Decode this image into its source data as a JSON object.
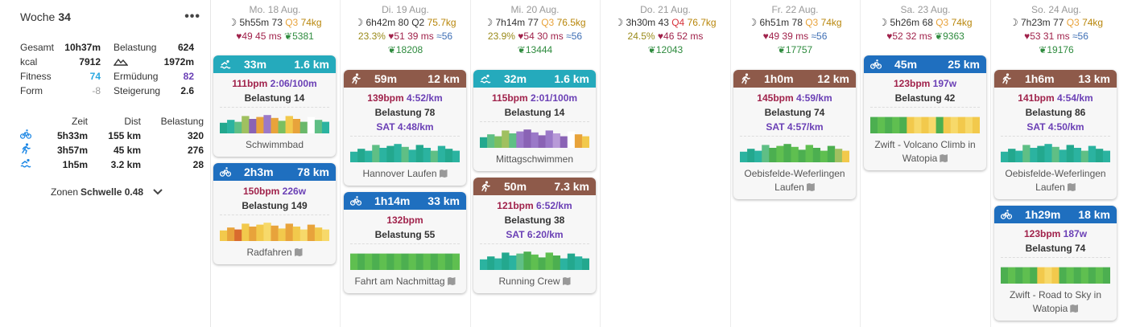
{
  "summary": {
    "week_label": "Woche",
    "week_num": "34",
    "menu_glyph": "•••",
    "stats": [
      {
        "l1": "Gesamt",
        "v1": "10h37m",
        "l2": "Belastung",
        "v2": "624"
      },
      {
        "l1": "kcal",
        "v1": "7912",
        "l2": "",
        "v2": "1972m"
      },
      {
        "l1": "Fitness",
        "v1": "74",
        "l2": "Ermüdung",
        "v2": "82"
      },
      {
        "l1": "Form",
        "v1": "-8",
        "l2": "Steigerung",
        "v2": "2.6"
      }
    ],
    "table_headers": [
      "Zeit",
      "Dist",
      "Belastung"
    ],
    "sports": [
      {
        "icon": "bike-icon",
        "time": "5h33m",
        "dist": "155 km",
        "load": "320"
      },
      {
        "icon": "run-icon",
        "time": "3h57m",
        "dist": "45 km",
        "load": "276"
      },
      {
        "icon": "swim-icon",
        "time": "1h5m",
        "dist": "3.2 km",
        "load": "28"
      }
    ],
    "zones_label": "Zonen",
    "zones_value": "Schwelle 0.48"
  },
  "days": [
    {
      "date": "Mo. 18 Aug.",
      "sleep": "5h55m",
      "score": "73",
      "q": "Q3",
      "kg": "74kg",
      "pct": "",
      "hrv": "49",
      "hrv2": "45 ms",
      "cal": "",
      "steps": "5381"
    },
    {
      "date": "Di. 19 Aug.",
      "sleep": "6h42m",
      "score": "80",
      "q": "Q2",
      "kg": "75.7kg",
      "pct": "23.3%",
      "hrv": "51",
      "hrv2": "39 ms",
      "cal": "56",
      "steps": "18208"
    },
    {
      "date": "Mi. 20 Aug.",
      "sleep": "7h14m",
      "score": "77",
      "q": "Q3",
      "kg": "76.5kg",
      "pct": "23.9%",
      "hrv": "54",
      "hrv2": "30 ms",
      "cal": "56",
      "steps": "13444"
    },
    {
      "date": "Do. 21 Aug.",
      "sleep": "3h30m",
      "score": "43",
      "q": "Q4",
      "kg": "76.7kg",
      "pct": "24.5%",
      "hrv": "46",
      "hrv2": "52 ms",
      "cal": "",
      "steps": "12043"
    },
    {
      "date": "Fr. 22 Aug.",
      "sleep": "6h51m",
      "score": "78",
      "q": "Q3",
      "kg": "74kg",
      "pct": "",
      "hrv": "49",
      "hrv2": "39 ms",
      "cal": "56",
      "steps": "17757"
    },
    {
      "date": "Sa. 23 Aug.",
      "sleep": "5h26m",
      "score": "68",
      "q": "Q3",
      "kg": "74kg",
      "pct": "",
      "hrv": "52",
      "hrv2": "32 ms",
      "cal": "",
      "steps": "9363"
    },
    {
      "date": "So. 24 Aug.",
      "sleep": "7h23m",
      "score": "77",
      "q": "Q3",
      "kg": "74kg",
      "pct": "",
      "hrv": "53",
      "hrv2": "31 ms",
      "cal": "56",
      "steps": "19176"
    }
  ],
  "activities": [
    {
      "day": 0,
      "sport": "swim",
      "dur": "33m",
      "dist": "1.6 km",
      "l1": "111bpm",
      "l1p": "2:06/100m",
      "load": "Belastung 14",
      "sat": "",
      "name": "Schwimmbad",
      "map": false,
      "colors": [
        "#23a88e",
        "#2bb3a0",
        "#5fbf85",
        "#a0c060",
        "#8a63b5",
        "#e8a33b",
        "#9b79c8",
        "#e8a33b",
        "#7bbf60",
        "#f2c94c",
        "#e8a33b",
        "#6ab86a",
        "#fff",
        "#5fbf85",
        "#2bb3a0"
      ]
    },
    {
      "day": 0,
      "sport": "bike",
      "dur": "2h3m",
      "dist": "78 km",
      "l1": "150bpm",
      "l1p": "226w",
      "load": "Belastung 149",
      "sat": "",
      "name": "Radfahren",
      "map": true,
      "colors": [
        "#f2c94c",
        "#e8a33b",
        "#d96b2e",
        "#f2c94c",
        "#e8a33b",
        "#f2c94c",
        "#f7d96a",
        "#e8a33b",
        "#f2c94c",
        "#e8a33b",
        "#f2c94c",
        "#f7d96a",
        "#e8a33b",
        "#f2c94c",
        "#f7d96a"
      ]
    },
    {
      "day": 1,
      "sport": "run",
      "dur": "59m",
      "dist": "12 km",
      "l1": "139bpm",
      "l1p": "4:52/km",
      "load": "Belastung 78",
      "sat": "SAT 4:48/km",
      "name": "Hannover Laufen",
      "map": true,
      "colors": [
        "#2bb3a0",
        "#23a88e",
        "#2bb3a0",
        "#5fbf85",
        "#2bb3a0",
        "#23a88e",
        "#2bb3a0",
        "#5fbf85",
        "#2bb3a0",
        "#23a88e",
        "#2bb3a0",
        "#5fbf85",
        "#2bb3a0",
        "#23a88e",
        "#2bb3a0"
      ]
    },
    {
      "day": 1,
      "sport": "bike",
      "dur": "1h14m",
      "dist": "33 km",
      "l1": "132bpm",
      "l1p": "",
      "load": "Belastung 55",
      "sat": "",
      "name": "Fahrt am Nachmittag",
      "map": true,
      "colors": [
        "#5fbf50",
        "#4caf50",
        "#5fbf50",
        "#4caf50",
        "#5fbf50",
        "#4caf50",
        "#5fbf50",
        "#4caf50",
        "#5fbf50",
        "#4caf50",
        "#5fbf50",
        "#4caf50",
        "#5fbf50",
        "#4caf50",
        "#5fbf50"
      ]
    },
    {
      "day": 2,
      "sport": "swim",
      "dur": "32m",
      "dist": "1.6 km",
      "l1": "115bpm",
      "l1p": "2:01/100m",
      "load": "Belastung 14",
      "sat": "",
      "name": "Mittagschwimmen",
      "map": false,
      "colors": [
        "#23a88e",
        "#5fbf85",
        "#7bbf60",
        "#a0c060",
        "#5fbf85",
        "#9b79c8",
        "#8a63b5",
        "#9b79c8",
        "#8a63b5",
        "#9b79c8",
        "#b89ad8",
        "#8a63b5",
        "#fff",
        "#e8a33b",
        "#f2c94c"
      ]
    },
    {
      "day": 2,
      "sport": "run",
      "dur": "50m",
      "dist": "7.3 km",
      "l1": "121bpm",
      "l1p": "6:52/km",
      "load": "Belastung 38",
      "sat": "SAT 6:20/km",
      "name": "Running Crew",
      "map": true,
      "colors": [
        "#2bb3a0",
        "#23a88e",
        "#2bb3a0",
        "#23a88e",
        "#2bb3a0",
        "#5fbf85",
        "#4caf50",
        "#5fbf50",
        "#4caf50",
        "#5fbf50",
        "#4caf50",
        "#2bb3a0",
        "#23a88e",
        "#2bb3a0",
        "#23a88e"
      ]
    },
    {
      "day": 4,
      "sport": "run",
      "dur": "1h0m",
      "dist": "12 km",
      "l1": "145bpm",
      "l1p": "4:59/km",
      "load": "Belastung 74",
      "sat": "SAT 4:57/km",
      "name": "Oebisfelde-Weferlingen Laufen",
      "map": true,
      "colors": [
        "#2bb3a0",
        "#23a88e",
        "#2bb3a0",
        "#5fbf85",
        "#4caf50",
        "#5fbf50",
        "#4caf50",
        "#5fbf50",
        "#4caf50",
        "#5fbf50",
        "#4caf50",
        "#5fbf50",
        "#4caf50",
        "#a0c060",
        "#f2c94c"
      ]
    },
    {
      "day": 5,
      "sport": "bike",
      "dur": "45m",
      "dist": "25 km",
      "l1": "123bpm",
      "l1p": "197w",
      "load": "Belastung 42",
      "sat": "",
      "name": "Zwift - Volcano Climb in Watopia",
      "map": true,
      "colors": [
        "#4caf50",
        "#5fbf50",
        "#4caf50",
        "#5fbf50",
        "#4caf50",
        "#f2c94c",
        "#f7d96a",
        "#f2c94c",
        "#f7d96a",
        "#4caf50",
        "#f2c94c",
        "#f7d96a",
        "#f2c94c",
        "#f7d96a",
        "#f2c94c"
      ]
    },
    {
      "day": 6,
      "sport": "run",
      "dur": "1h6m",
      "dist": "13 km",
      "l1": "141bpm",
      "l1p": "4:54/km",
      "load": "Belastung 86",
      "sat": "SAT 4:50/km",
      "name": "Oebisfelde-Weferlingen Laufen",
      "map": true,
      "colors": [
        "#2bb3a0",
        "#23a88e",
        "#2bb3a0",
        "#5fbf85",
        "#2bb3a0",
        "#23a88e",
        "#2bb3a0",
        "#5fbf85",
        "#2bb3a0",
        "#23a88e",
        "#2bb3a0",
        "#5fbf85",
        "#2bb3a0",
        "#23a88e",
        "#2bb3a0"
      ]
    },
    {
      "day": 6,
      "sport": "bike",
      "dur": "1h29m",
      "dist": "18 km",
      "l1": "123bpm",
      "l1p": "187w",
      "load": "Belastung 74",
      "sat": "",
      "name": "Zwift - Road to Sky in Watopia",
      "map": true,
      "colors": [
        "#4caf50",
        "#5fbf50",
        "#4caf50",
        "#5fbf50",
        "#4caf50",
        "#f2c94c",
        "#f7d96a",
        "#f2c94c",
        "#4caf50",
        "#5fbf50",
        "#4caf50",
        "#5fbf50",
        "#4caf50",
        "#5fbf50",
        "#4caf50"
      ]
    }
  ]
}
